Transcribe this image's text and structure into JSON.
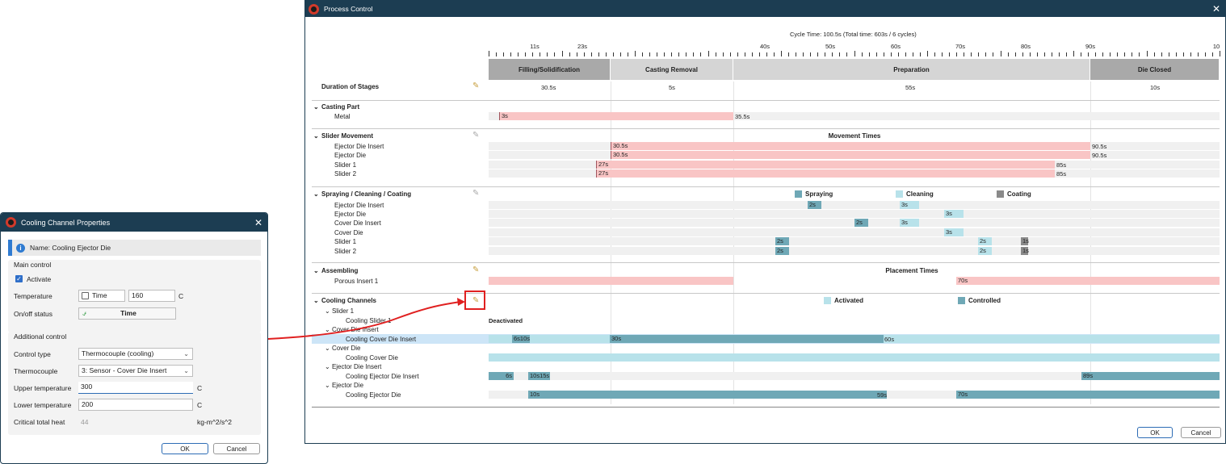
{
  "process_control": {
    "title": "Process Control",
    "cycle_time": "Cycle Time: 100.5s (Total time: 603s / 6 cycles)",
    "time_ticks": [
      "11s",
      "23s",
      "40s",
      "50s",
      "60s",
      "70s",
      "80s",
      "90s",
      "10"
    ],
    "stages": [
      {
        "label": "Filling/Solidification",
        "duration": "30.5s"
      },
      {
        "label": "Casting Removal",
        "duration": "5s"
      },
      {
        "label": "Preparation",
        "duration": "55s"
      },
      {
        "label": "Die Closed",
        "duration": "10s"
      }
    ],
    "duration_label": "Duration of Stages",
    "casting_part": {
      "title": "Casting Part",
      "rows": [
        {
          "label": "Metal",
          "start": "3s",
          "end": "35.5s"
        }
      ]
    },
    "slider_movement": {
      "title": "Slider Movement",
      "center_title": "Movement Times",
      "rows": [
        {
          "label": "Ejector Die Insert",
          "start": "30.5s",
          "end": "90.5s"
        },
        {
          "label": "Ejector Die",
          "start": "30.5s",
          "end": "90.5s"
        },
        {
          "label": "Slider 1",
          "start": "27s",
          "end": "85s"
        },
        {
          "label": "Slider 2",
          "start": "27s",
          "end": "85s"
        }
      ]
    },
    "spraying": {
      "title": "Spraying / Cleaning / Coating",
      "legend": [
        "Spraying",
        "Cleaning",
        "Coating"
      ],
      "rows": [
        {
          "label": "Ejector Die Insert",
          "values": [
            "2s",
            "3s"
          ]
        },
        {
          "label": "Ejector Die",
          "values": [
            "3s"
          ]
        },
        {
          "label": "Cover Die Insert",
          "values": [
            "2s",
            "3s"
          ]
        },
        {
          "label": "Cover Die",
          "values": [
            "3s"
          ]
        },
        {
          "label": "Slider 1",
          "values": [
            "2s",
            "2s",
            "1s"
          ]
        },
        {
          "label": "Slider 2",
          "values": [
            "2s",
            "2s",
            "1s"
          ]
        }
      ]
    },
    "assembling": {
      "title": "Assembling",
      "center_title": "Placement Times",
      "rows": [
        {
          "label": "Porous Insert 1",
          "value": "70s"
        }
      ]
    },
    "cooling": {
      "title": "Cooling Channels",
      "legend": [
        "Activated",
        "Controlled"
      ],
      "groups": [
        {
          "label": "Slider 1",
          "child": "Cooling Slider 1",
          "values": [
            "Deactivated"
          ]
        },
        {
          "label": "Cover Die Insert",
          "child": "Cooling Cover Die Insert",
          "values": [
            "6s10s",
            "30s",
            "60s"
          ]
        },
        {
          "label": "Cover Die",
          "child": "Cooling Cover Die",
          "values": []
        },
        {
          "label": "Ejector Die Insert",
          "child": "Cooling Ejector Die Insert",
          "values": [
            "6s",
            "10s15s",
            "89s"
          ]
        },
        {
          "label": "Ejector Die",
          "child": "Cooling Ejector Die",
          "values": [
            "10s",
            "59s",
            "70s"
          ]
        }
      ]
    },
    "ok_label": "OK",
    "cancel_label": "Cancel"
  },
  "cooling_dialog": {
    "title": "Cooling Channel Properties",
    "name": "Name: Cooling Ejector Die",
    "main_control": "Main control",
    "activate": "Activate",
    "temperature_label": "Temperature",
    "time_label": "Time",
    "temperature_value": "160",
    "temperature_unit": "C",
    "onoff_label": "On/off status",
    "onoff_value": "Time",
    "additional_control": "Additional control",
    "control_type_label": "Control type",
    "control_type_value": "Thermocouple (cooling)",
    "thermocouple_label": "Thermocouple",
    "thermocouple_value": "3: Sensor - Cover Die Insert",
    "upper_label": "Upper temperature",
    "upper_value": "300",
    "upper_unit": "C",
    "lower_label": "Lower temperature",
    "lower_value": "200",
    "lower_unit": "C",
    "heat_label": "Critical total heat",
    "heat_value": "44",
    "heat_unit": "kg-m^2/s^2",
    "ok_label": "OK",
    "cancel_label": "Cancel"
  },
  "colors": {
    "title_bar": "#1c3d52",
    "pink": "#f9c5c5",
    "light_blue": "#b8e2ea",
    "dark_blue": "#6fa8b6",
    "accent": "#2d6cb5"
  }
}
